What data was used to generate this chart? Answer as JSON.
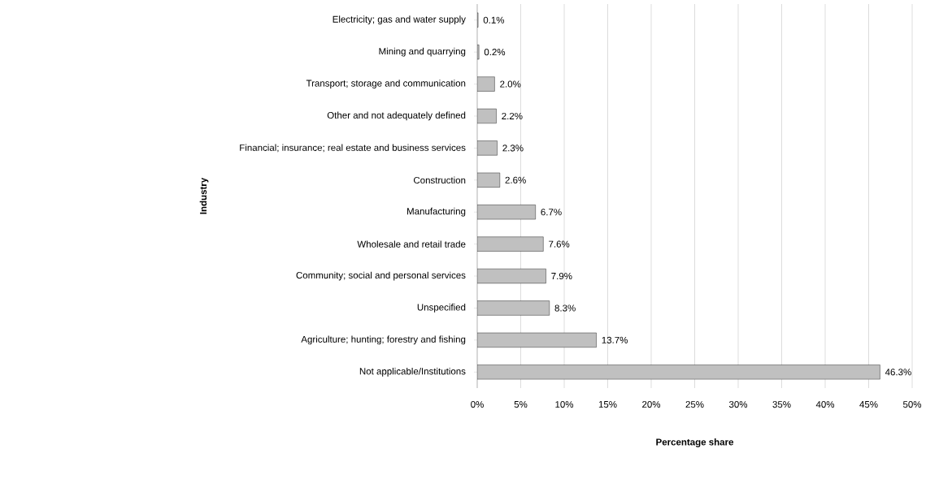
{
  "chart_data": {
    "type": "bar",
    "orientation": "horizontal",
    "xlabel": "Percentage share",
    "ylabel": "Industry",
    "categories": [
      "Electricity; gas and water supply",
      "Mining and quarrying",
      "Transport; storage and communication",
      "Other and not adequately defined",
      "Financial; insurance; real estate and business services",
      "Construction",
      "Manufacturing",
      "Wholesale and retail trade",
      "Community; social and personal services",
      "Unspecified",
      "Agriculture; hunting; forestry and fishing",
      "Not applicable/Institutions"
    ],
    "values": [
      0.1,
      0.2,
      2.0,
      2.2,
      2.3,
      2.6,
      6.7,
      7.6,
      7.9,
      8.3,
      13.7,
      46.3
    ],
    "value_labels": [
      "0.1%",
      "0.2%",
      "2.0%",
      "2.2%",
      "2.3%",
      "2.6%",
      "6.7%",
      "7.6%",
      "7.9%",
      "8.3%",
      "13.7%",
      "46.3%"
    ],
    "color": "#c0c0c0",
    "xlim": [
      0,
      50
    ],
    "xticks": [
      {
        "value": 0,
        "label": "0%"
      },
      {
        "value": 5,
        "label": "5%"
      },
      {
        "value": 10,
        "label": "10%"
      },
      {
        "value": 15,
        "label": "15%"
      },
      {
        "value": 20,
        "label": "20%"
      },
      {
        "value": 25,
        "label": "25%"
      },
      {
        "value": 30,
        "label": "30%"
      },
      {
        "value": 35,
        "label": "35%"
      },
      {
        "value": 40,
        "label": "40%"
      },
      {
        "value": 45,
        "label": "45%"
      },
      {
        "value": 50,
        "label": "50%"
      }
    ],
    "grid": "x"
  }
}
